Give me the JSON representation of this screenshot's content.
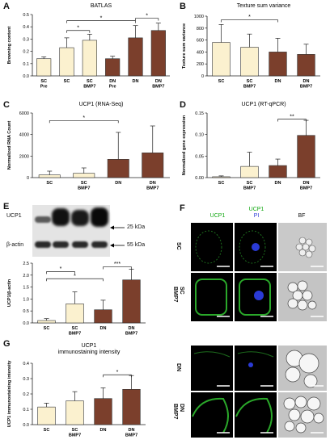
{
  "colors": {
    "sc": "#fbf1cf",
    "dn": "#7b3f2c",
    "axis": "#222222",
    "error": "#222222"
  },
  "panels": {
    "A": "A",
    "B": "B",
    "C": "C",
    "D": "D",
    "E": "E",
    "F": "F",
    "G": "G"
  },
  "chart_data": [
    {
      "panel": "A",
      "type": "bar",
      "title": "BATLAS",
      "ylabel": "Browning content",
      "ylim": [
        0.0,
        0.5
      ],
      "yticks": [
        0.0,
        0.1,
        0.2,
        0.3,
        0.4,
        0.5
      ],
      "tick_decimals": 1,
      "categories": [
        "SC\nPre",
        "SC",
        "SC\nBMP7",
        "DN\nPre",
        "DN",
        "DN\nBMP7"
      ],
      "groups": [
        "sc",
        "sc",
        "sc",
        "dn",
        "dn",
        "dn"
      ],
      "values": [
        0.14,
        0.23,
        0.29,
        0.14,
        0.31,
        0.37
      ],
      "errors": [
        0.015,
        0.08,
        0.05,
        0.02,
        0.1,
        0.06
      ],
      "significance": [
        {
          "from": 1,
          "to": 2,
          "level": 0.37,
          "label": "*"
        },
        {
          "from": 1,
          "to": 4,
          "level": 0.45,
          "label": "*"
        },
        {
          "from": 4,
          "to": 5,
          "level": 0.47,
          "label": "*"
        }
      ]
    },
    {
      "panel": "B",
      "type": "bar",
      "title": "Texture sum variance",
      "ylabel": "Texture sum variance",
      "ylim": [
        0,
        1000
      ],
      "yticks": [
        0,
        200,
        400,
        600,
        800,
        1000
      ],
      "tick_decimals": 0,
      "categories": [
        "SC",
        "SC\nBMP7",
        "DN",
        "DN\nBMP7"
      ],
      "groups": [
        "sc",
        "sc",
        "dn",
        "dn"
      ],
      "values": [
        560,
        480,
        400,
        360
      ],
      "errors": [
        300,
        220,
        230,
        170
      ],
      "significance": [
        {
          "from": 0,
          "to": 2,
          "level": 940,
          "label": "*"
        }
      ]
    },
    {
      "panel": "C",
      "type": "bar",
      "title": "UCP1 (RNA-Seq)",
      "ylabel": "Normalized RNA Count",
      "ylim": [
        0,
        6000
      ],
      "yticks": [
        0,
        2000,
        4000,
        6000
      ],
      "tick_decimals": 0,
      "categories": [
        "SC",
        "SC\nBMP7",
        "DN",
        "DN\nBMP7"
      ],
      "groups": [
        "sc",
        "sc",
        "dn",
        "dn"
      ],
      "values": [
        250,
        400,
        1700,
        2300
      ],
      "errors": [
        350,
        500,
        2500,
        2500
      ],
      "significance": [
        {
          "from": 0,
          "to": 2,
          "level": 5300,
          "label": "*"
        }
      ]
    },
    {
      "panel": "D",
      "type": "bar",
      "title": "UCP1 (RT-qPCR)",
      "ylabel": "Normalized gene expression",
      "ylim": [
        0.0,
        0.15
      ],
      "yticks": [
        0.0,
        0.05,
        0.1,
        0.15
      ],
      "tick_decimals": 2,
      "categories": [
        "SC",
        "SC\nBMP7",
        "DN",
        "DN\nBMP7"
      ],
      "groups": [
        "sc",
        "sc",
        "dn",
        "dn"
      ],
      "values": [
        0.002,
        0.026,
        0.028,
        0.098
      ],
      "errors": [
        0.002,
        0.033,
        0.015,
        0.035
      ],
      "significance": [
        {
          "from": 2,
          "to": 3,
          "level": 0.136,
          "label": "**"
        }
      ]
    },
    {
      "panel": "E",
      "type": "bar",
      "title": "",
      "ylabel": "UCP1/β-actin",
      "ylim": [
        0.0,
        2.5
      ],
      "yticks": [
        0.0,
        0.5,
        1.0,
        1.5,
        2.0,
        2.5
      ],
      "tick_decimals": 1,
      "categories": [
        "SC",
        "SC\nBMP7",
        "DN",
        "DN\nBMP7"
      ],
      "groups": [
        "sc",
        "sc",
        "dn",
        "dn"
      ],
      "values": [
        0.1,
        0.8,
        0.55,
        1.8
      ],
      "errors": [
        0.08,
        0.5,
        0.4,
        0.45
      ],
      "significance": [
        {
          "from": 0,
          "to": 2,
          "level": 1.85,
          "label": "*"
        },
        {
          "from": 0,
          "to": 1,
          "level": 2.15,
          "label": "*"
        },
        {
          "from": 2,
          "to": 3,
          "level": 2.35,
          "label": "***"
        }
      ]
    },
    {
      "panel": "G",
      "type": "bar",
      "title": "UCP1\nimmunostaining intensity",
      "ylabel": "UCP1 immunostaining intensity",
      "ylim": [
        0.0,
        0.4
      ],
      "yticks": [
        0.0,
        0.1,
        0.2,
        0.3,
        0.4
      ],
      "tick_decimals": 1,
      "categories": [
        "SC",
        "SC\nBMP7",
        "DN",
        "DN\nBMP7"
      ],
      "groups": [
        "sc",
        "sc",
        "dn",
        "dn"
      ],
      "values": [
        0.115,
        0.155,
        0.17,
        0.23
      ],
      "errors": [
        0.025,
        0.06,
        0.07,
        0.09
      ],
      "significance": [
        {
          "from": 2,
          "to": 3,
          "level": 0.325,
          "label": "*"
        }
      ]
    }
  ],
  "blot": {
    "row1_label": "UCP1",
    "row2_label": "β-actin",
    "kda_top": "25 kDa",
    "kda_bottom": "55 kDa"
  },
  "micro": {
    "col_ucp1": "UCP1",
    "col_merge_line1": "UCP1",
    "col_merge_line2": "PI",
    "col_bf": "BF",
    "row_sc": "SC",
    "row_sc_bmp7_line1": "SC",
    "row_sc_bmp7_line2": "BMP7",
    "row_dn": "DN",
    "row_dn_bmp7_line1": "DN",
    "row_dn_bmp7_line2": "BMP7"
  }
}
